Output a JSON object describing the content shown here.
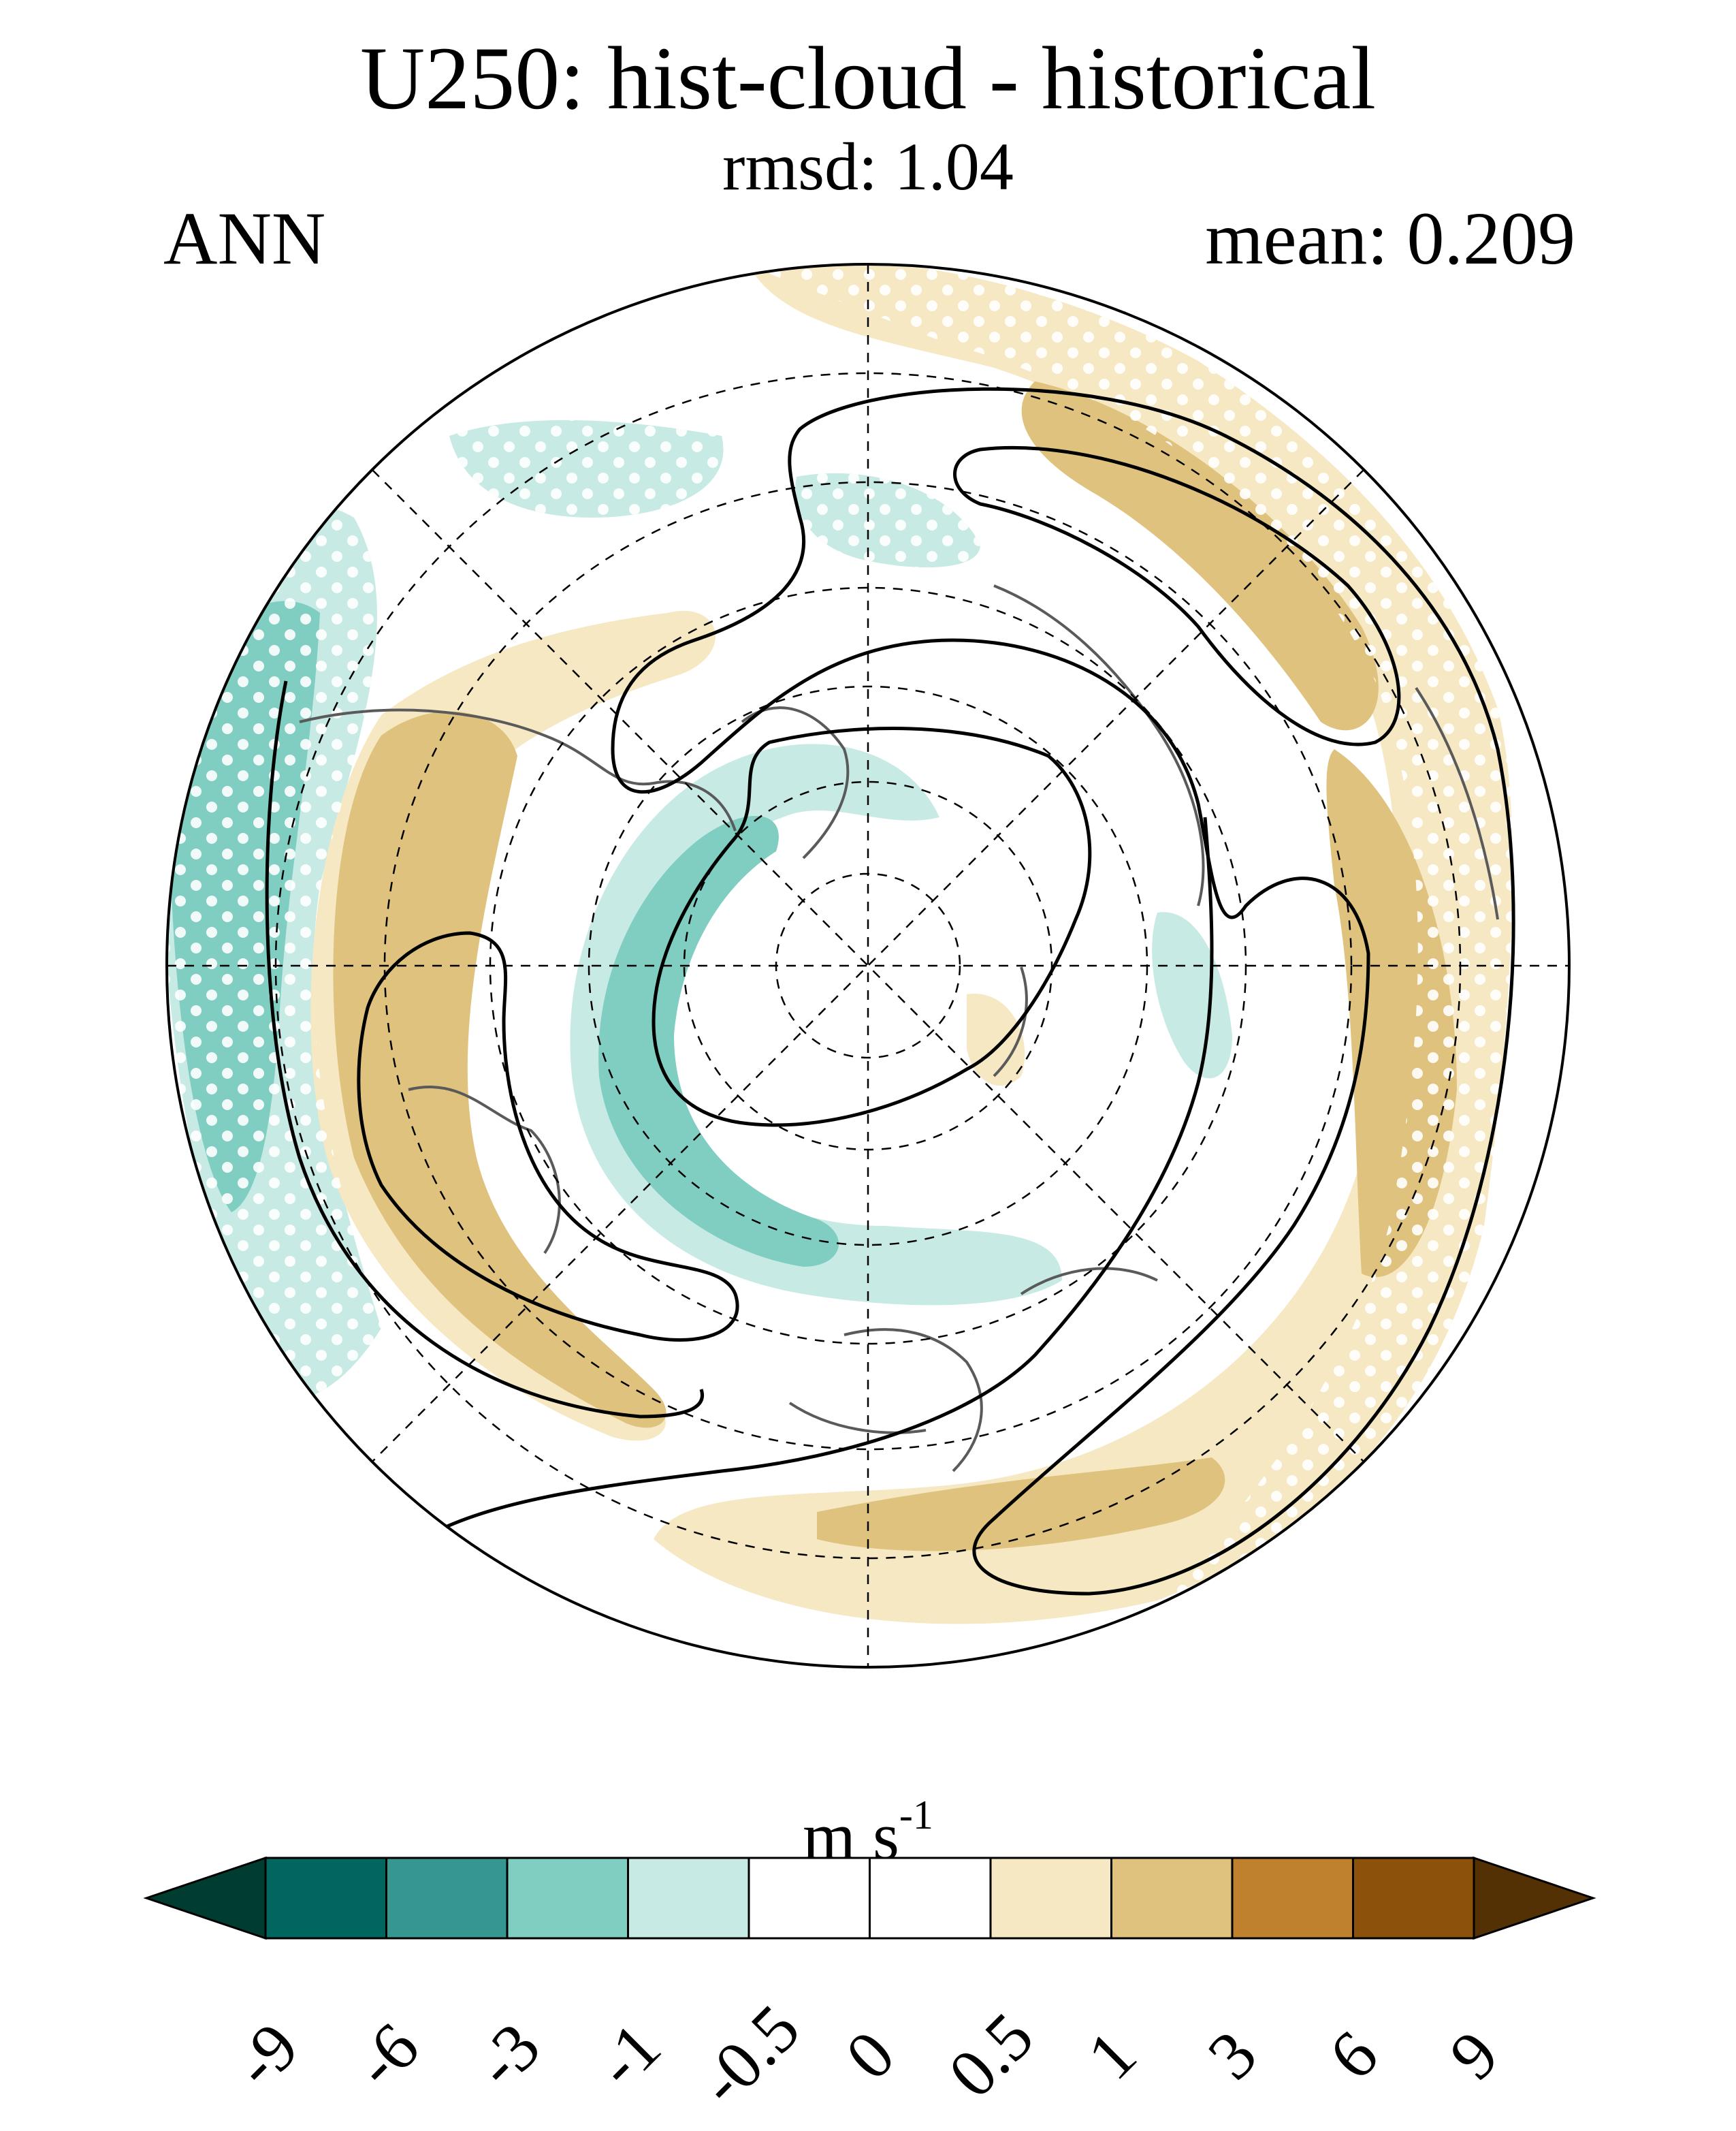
{
  "title": "U250: hist-cloud - historical",
  "subtitle": "rmsd: 1.04",
  "season": "ANN",
  "mean_label": "mean: 0.209",
  "units": {
    "base": "m s",
    "exponent": "-1"
  },
  "colorbar": {
    "levels": [
      "-9",
      "-6",
      "-3",
      "-1",
      "-0.5",
      "0",
      "0.5",
      "1",
      "3",
      "6",
      "9"
    ],
    "colors": [
      "#003c30",
      "#01665e",
      "#35978f",
      "#80cdc1",
      "#c7eae5",
      "#ffffff",
      "#ffffff",
      "#f6e8c3",
      "#dfc27d",
      "#bf812d",
      "#8c510a",
      "#543005"
    ]
  },
  "map": {
    "projection": "North polar stereographic",
    "field": "U250 difference (hist-cloud minus historical)",
    "stipple_meaning": "significance dots",
    "contours": "black solid lines: climatological jet"
  }
}
